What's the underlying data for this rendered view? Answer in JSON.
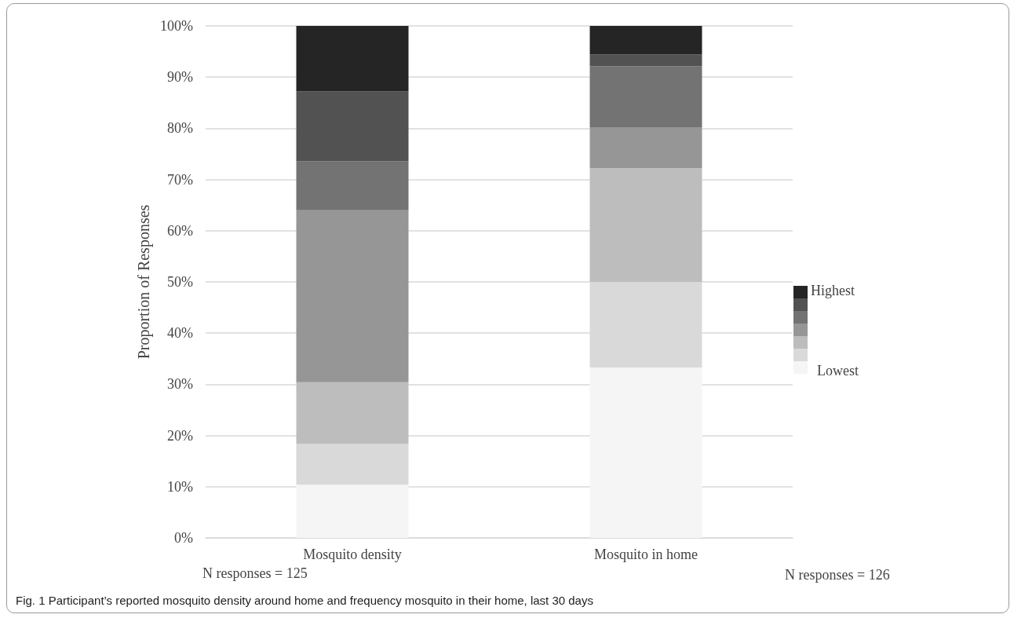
{
  "chart_data": {
    "type": "bar",
    "stacked": true,
    "title": "Fig. 1 Participant’s reported mosquito density around home and frequency mosquito in their home, last 30 days",
    "ylabel": "Proportion of Responses",
    "categories": [
      "Mosquito density",
      "Mosquito in home"
    ],
    "series": [
      {
        "color": "#f5f5f5",
        "values": [
          10.4,
          33.3
        ]
      },
      {
        "color": "#d9d9d9",
        "values": [
          8.0,
          16.7
        ]
      },
      {
        "color": "#bdbdbd",
        "values": [
          12.0,
          22.2
        ]
      },
      {
        "color": "#969696",
        "values": [
          33.6,
          8.0
        ]
      },
      {
        "color": "#737373",
        "values": [
          9.6,
          11.9
        ]
      },
      {
        "color": "#525252",
        "values": [
          13.6,
          2.3
        ]
      },
      {
        "color": "#252525",
        "values": [
          12.8,
          5.6
        ]
      }
    ],
    "ylim": [
      0,
      100
    ],
    "yticks": [
      {
        "value": 0,
        "label": "0%"
      },
      {
        "value": 10,
        "label": "10%"
      },
      {
        "value": 20,
        "label": "20%"
      },
      {
        "value": 30,
        "label": "30%"
      },
      {
        "value": 40,
        "label": "40%"
      },
      {
        "value": 50,
        "label": "50%"
      },
      {
        "value": 60,
        "label": "60%"
      },
      {
        "value": 70,
        "label": "70%"
      },
      {
        "value": 80,
        "label": "80%"
      },
      {
        "value": 90,
        "label": "90%"
      },
      {
        "value": 100,
        "label": "100%"
      }
    ],
    "grid": "y",
    "annotations": [
      "Highest",
      "Lowest",
      "N responses = 125",
      "N responses = 126"
    ]
  }
}
